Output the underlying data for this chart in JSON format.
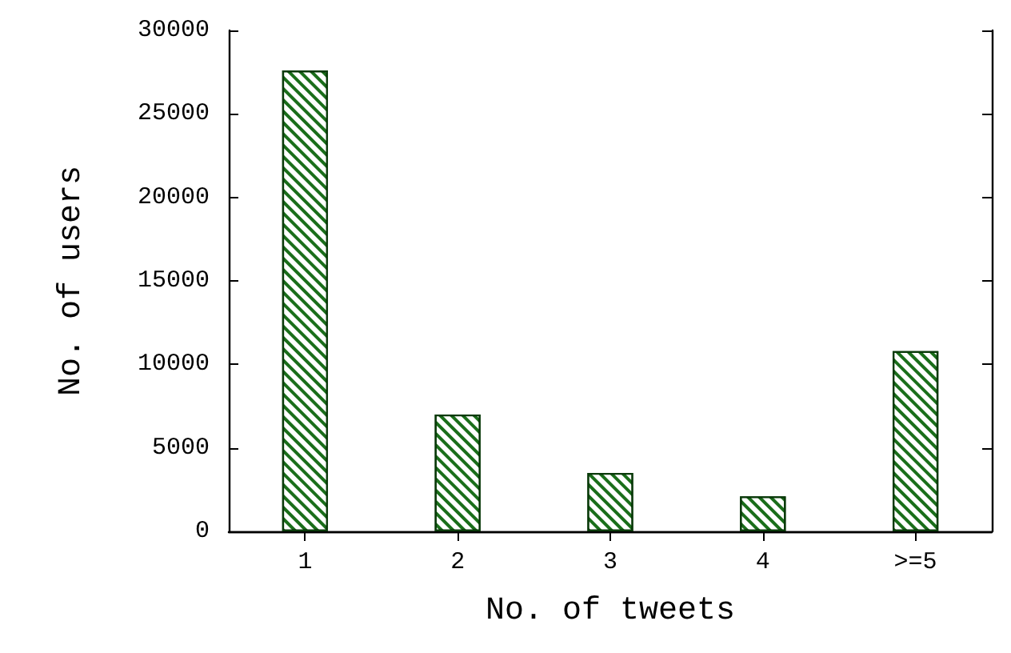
{
  "chart_data": {
    "type": "bar",
    "xlabel": "No. of tweets",
    "ylabel": "No. of users",
    "categories": [
      "1",
      "2",
      "3",
      "4",
      ">=5"
    ],
    "values": [
      27600,
      7000,
      3500,
      2100,
      10800
    ],
    "color": "#1a6e1a",
    "ylim": [
      0,
      30000
    ],
    "yticks": [
      0,
      5000,
      10000,
      15000,
      20000,
      25000,
      30000
    ],
    "grid": false
  }
}
